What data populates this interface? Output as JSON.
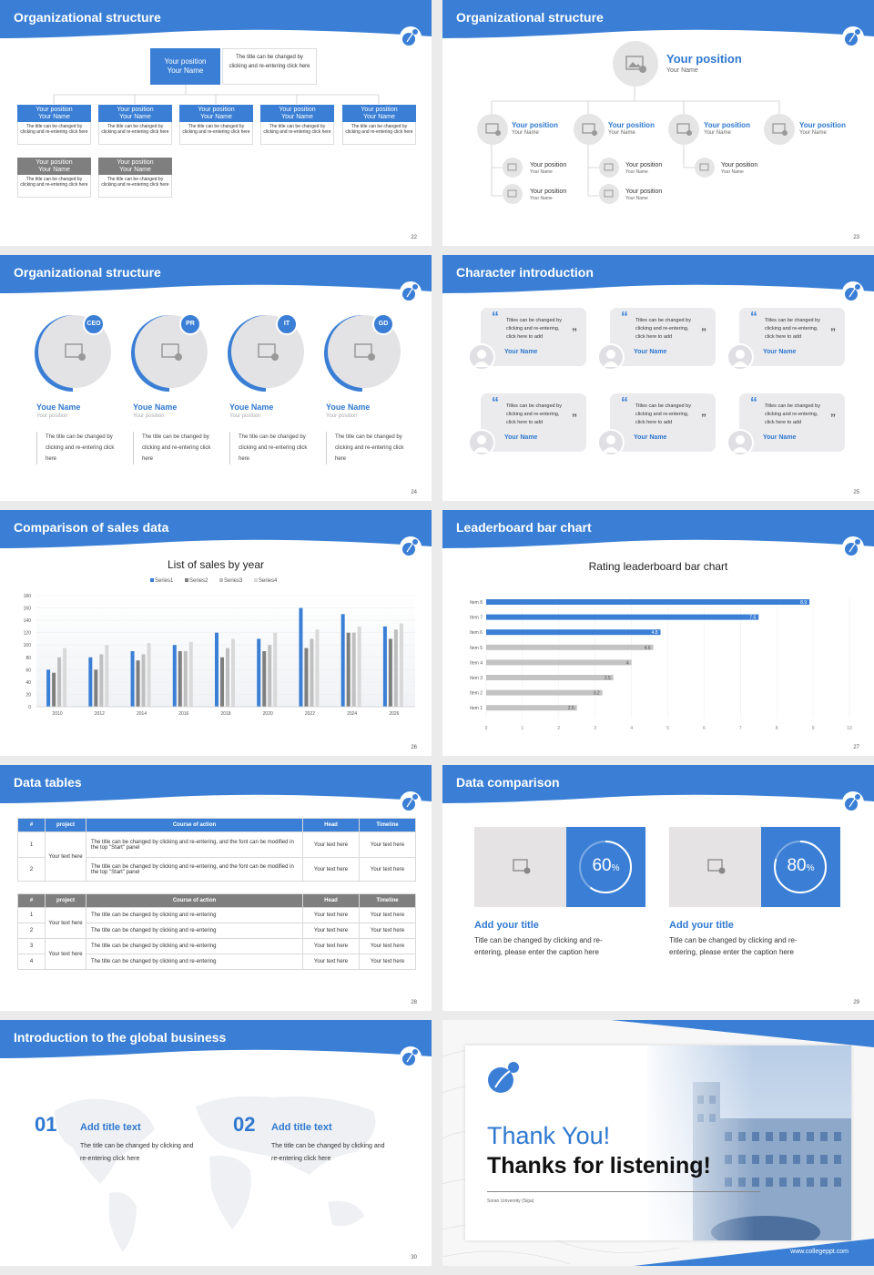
{
  "colors": {
    "accent": "#3a7fd5",
    "gray": "#7f7f7f",
    "light": "#e8e8ea"
  },
  "slides": {
    "s22": {
      "title": "Organizational structure",
      "num": "22",
      "top_card": {
        "title": "Your position",
        "name": "Your Name",
        "desc": "The title can be changed by clicking and re-entering click here"
      },
      "cards": [
        {
          "title": "Your position",
          "name": "Your Name",
          "desc": "The title can be changed by clicking and re-entering click here"
        },
        {
          "title": "Your position",
          "name": "Your Name",
          "desc": "The title can be changed by clicking and re-entering click here"
        },
        {
          "title": "Your position",
          "name": "Your Name",
          "desc": "The title can be changed by clicking and re-entering click here"
        },
        {
          "title": "Your position",
          "name": "Your Name",
          "desc": "The title can be changed by clicking and re-entering click here"
        },
        {
          "title": "Your position",
          "name": "Your Name",
          "desc": "The title can be changed by clicking and re-entering click here"
        },
        {
          "title": "Your position",
          "name": "Your Name",
          "desc": "The title can be changed by clicking and re-entering click here"
        },
        {
          "title": "Your position",
          "name": "Your Name",
          "desc": "The title can be changed by clicking and re-entering click here"
        }
      ]
    },
    "s23": {
      "title": "Organizational structure",
      "num": "23",
      "top": {
        "title": "Your position",
        "name": "Your Name"
      },
      "mid": [
        {
          "title": "Your position",
          "name": "Your Name"
        },
        {
          "title": "Your position",
          "name": "Your Name"
        },
        {
          "title": "Your position",
          "name": "Your Name"
        },
        {
          "title": "Your position",
          "name": "Your Name"
        }
      ],
      "sub": [
        {
          "title": "Your position",
          "name": "Your Name"
        },
        {
          "title": "Your position",
          "name": "Your Name"
        },
        {
          "title": "Your position",
          "name": "Your Name"
        },
        {
          "title": "Your position",
          "name": "Your Name"
        },
        {
          "title": "Your position",
          "name": "Your Name"
        }
      ]
    },
    "s24": {
      "title": "Organizational structure",
      "num": "24",
      "people": [
        {
          "badge": "CEO",
          "name": "Youe Name",
          "pos": "Your position",
          "desc": "The title can be changed by clicking and re-entering click here"
        },
        {
          "badge": "PR",
          "name": "Youe Name",
          "pos": "Your position",
          "desc": "The title can be changed by clicking and re-entering click here"
        },
        {
          "badge": "IT",
          "name": "Youe Name",
          "pos": "Your position",
          "desc": "The title can be changed by clicking and re-entering click here"
        },
        {
          "badge": "GD",
          "name": "Youe Name",
          "pos": "Your position",
          "desc": "The title can be changed by clicking and re-entering click here"
        }
      ]
    },
    "s25": {
      "title": "Character introduction",
      "num": "25",
      "quote": "Titles can be changed by clicking and re-entering, click here to add",
      "name": "Your Name"
    },
    "s26": {
      "title": "Comparison of sales data",
      "num": "26"
    },
    "s27": {
      "title": "Leaderboard bar chart",
      "num": "27"
    },
    "s28": {
      "title": "Data tables",
      "num": "28",
      "t1": {
        "headers": [
          "#",
          "project",
          "Course of action",
          "Head",
          "Timeline"
        ],
        "rows": [
          {
            "n": "1",
            "action": "The title can be changed by clicking and re-entering, and the font can be modified in the top \"Start\" panel",
            "head": "Your text here",
            "time": "Your text here"
          },
          {
            "n": "2",
            "action": "The title can be changed by clicking and re-entering, and the font can be modified in the top \"Start\" panel",
            "head": "Your text here",
            "time": "Your text here"
          }
        ],
        "project": "Your text here"
      },
      "t2": {
        "headers": [
          "#",
          "project",
          "Course of action",
          "Head",
          "Timeline"
        ],
        "rows": [
          {
            "n": "1",
            "action": "The title can be changed by clicking and re-entering",
            "head": "Your text here",
            "time": "Your text here"
          },
          {
            "n": "2",
            "action": "The title can be changed by clicking and re-entering",
            "head": "Your text here",
            "time": "Your text here"
          },
          {
            "n": "3",
            "action": "The title can be changed by clicking and re-entering",
            "head": "Your text here",
            "time": "Your text here"
          },
          {
            "n": "4",
            "action": "The title can be changed by clicking and re-entering",
            "head": "Your text here",
            "time": "Your text here"
          }
        ],
        "project_a": "Your text here",
        "project_b": "Your text here"
      }
    },
    "s29": {
      "title": "Data comparison",
      "num": "29",
      "items": [
        {
          "pct": "60",
          "sym": "%",
          "heading": "Add your title",
          "desc": "Title can be changed by clicking and re-entering, please enter the caption here"
        },
        {
          "pct": "80",
          "sym": "%",
          "heading": "Add your title",
          "desc": "Title can be changed by clicking and re-entering, please enter the caption here"
        }
      ]
    },
    "s30": {
      "title": "Introduction to the global business",
      "num": "30",
      "items": [
        {
          "no": "01",
          "heading": "Add title text",
          "desc": "The title can be changed by clicking and re-entering click here"
        },
        {
          "no": "02",
          "heading": "Add title text",
          "desc": "The title can be changed by clicking and re-entering click here"
        }
      ]
    },
    "s31": {
      "thanks": "Thank You!",
      "sub": "Thanks for listening!",
      "school": "Soran University (Siga)",
      "url": "www.collegeppt.com"
    }
  },
  "chart_data": [
    {
      "type": "bar",
      "title": "List of sales by year",
      "categories": [
        "2010",
        "2012",
        "2014",
        "2016",
        "2018",
        "2020",
        "2022",
        "2024",
        "2026"
      ],
      "series": [
        {
          "name": "Series1",
          "color": "#3a7fd5",
          "values": [
            60,
            80,
            90,
            100,
            120,
            110,
            160,
            150,
            130
          ]
        },
        {
          "name": "Series2",
          "color": "#7f7f7f",
          "values": [
            55,
            60,
            75,
            90,
            80,
            90,
            95,
            120,
            110
          ]
        },
        {
          "name": "Series3",
          "color": "#bfbfbf",
          "values": [
            80,
            85,
            85,
            90,
            95,
            100,
            110,
            120,
            125
          ]
        },
        {
          "name": "Series4",
          "color": "#d9d9d9",
          "values": [
            95,
            100,
            103,
            105,
            110,
            120,
            125,
            130,
            135
          ]
        }
      ],
      "yticks": [
        "0",
        "20",
        "40",
        "60",
        "80",
        "100",
        "120",
        "140",
        "160",
        "180"
      ],
      "ylim": [
        0,
        180
      ]
    },
    {
      "type": "bar",
      "orientation": "horizontal",
      "title": "Rating leaderboard bar chart",
      "categories": [
        "Item 8",
        "Item 7",
        "Item 6",
        "Item 5",
        "Item 4",
        "Item 3",
        "Item 2",
        "Item 1"
      ],
      "values": [
        8.9,
        7.5,
        4.8,
        4.6,
        4,
        3.5,
        3.2,
        2.5
      ],
      "labels": [
        "8.9",
        "7.5",
        "4.8",
        "4.6",
        "4",
        "3.5",
        "3.2",
        "2.5"
      ],
      "xticks": [
        "0",
        "1",
        "2",
        "3",
        "4",
        "5",
        "6",
        "7",
        "8",
        "9",
        "10"
      ],
      "xlim": [
        0,
        10
      ],
      "highlight_count": 3
    }
  ]
}
